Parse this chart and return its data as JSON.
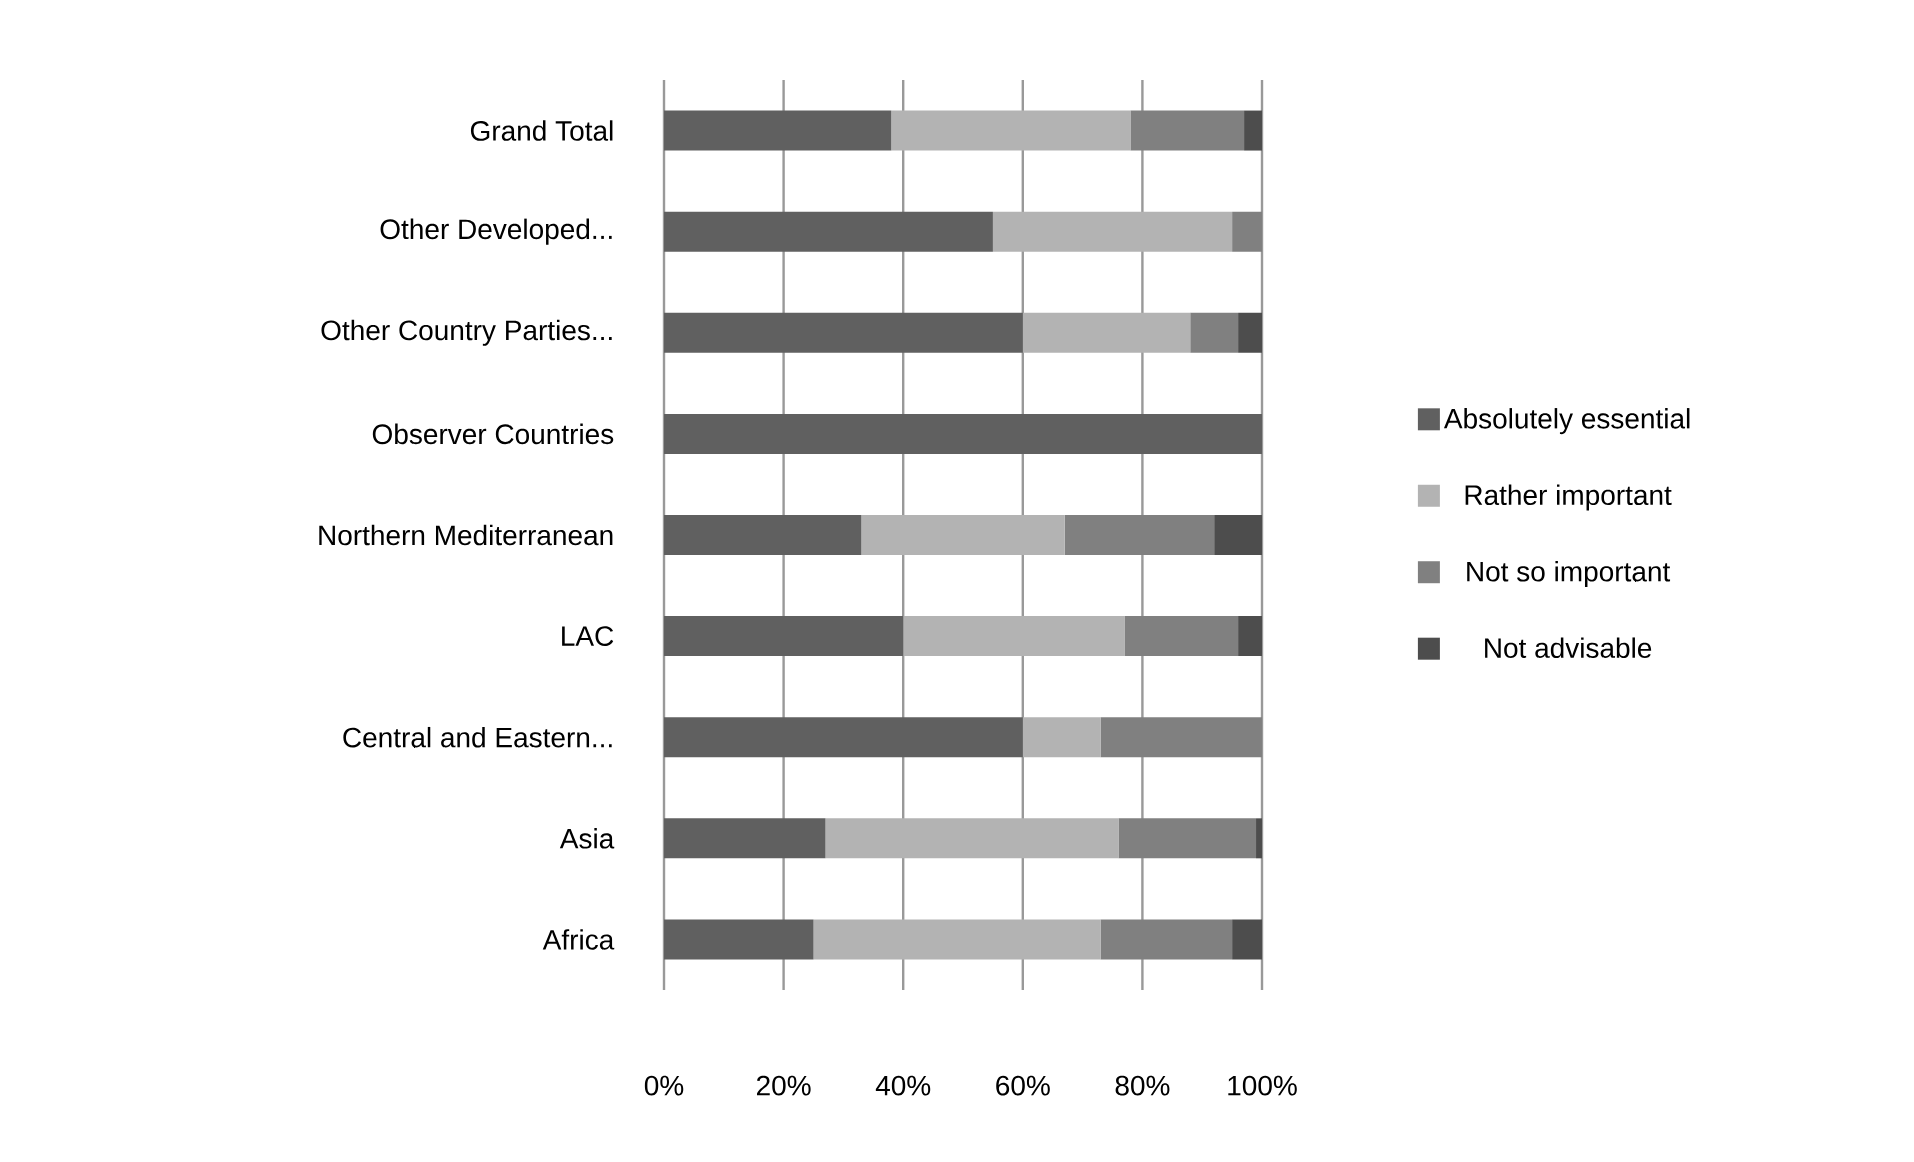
{
  "chart_data": {
    "type": "bar",
    "orientation": "horizontal",
    "stacked": true,
    "categories": [
      "Grand Total",
      "Other Developed...",
      "Other Country Parties...",
      "Observer Countries",
      "Northern Mediterranean",
      "LAC",
      "Central and Eastern...",
      "Asia",
      "Africa"
    ],
    "series": [
      {
        "name": "Absolutely essential",
        "color": "#606060",
        "values": [
          38,
          55,
          60,
          100,
          33,
          40,
          60,
          27,
          25
        ]
      },
      {
        "name": "Rather important",
        "color": "#b3b3b3",
        "values": [
          40,
          40,
          28,
          0,
          34,
          37,
          13,
          49,
          48
        ]
      },
      {
        "name": "Not so important",
        "color": "#808080",
        "values": [
          19,
          5,
          8,
          0,
          25,
          19,
          27,
          23,
          22
        ]
      },
      {
        "name": "Not advisable",
        "color": "#4d4d4d",
        "values": [
          3,
          0,
          4,
          0,
          8,
          4,
          0,
          1,
          5
        ]
      }
    ],
    "xlim": [
      0,
      100
    ],
    "xticks": [
      {
        "value": 0,
        "label": "0%"
      },
      {
        "value": 20,
        "label": "20%"
      },
      {
        "value": 40,
        "label": "40%"
      },
      {
        "value": 60,
        "label": "60%"
      },
      {
        "value": 80,
        "label": "80%"
      },
      {
        "value": 100,
        "label": "100%"
      }
    ],
    "grid": "x",
    "legend": "right"
  }
}
